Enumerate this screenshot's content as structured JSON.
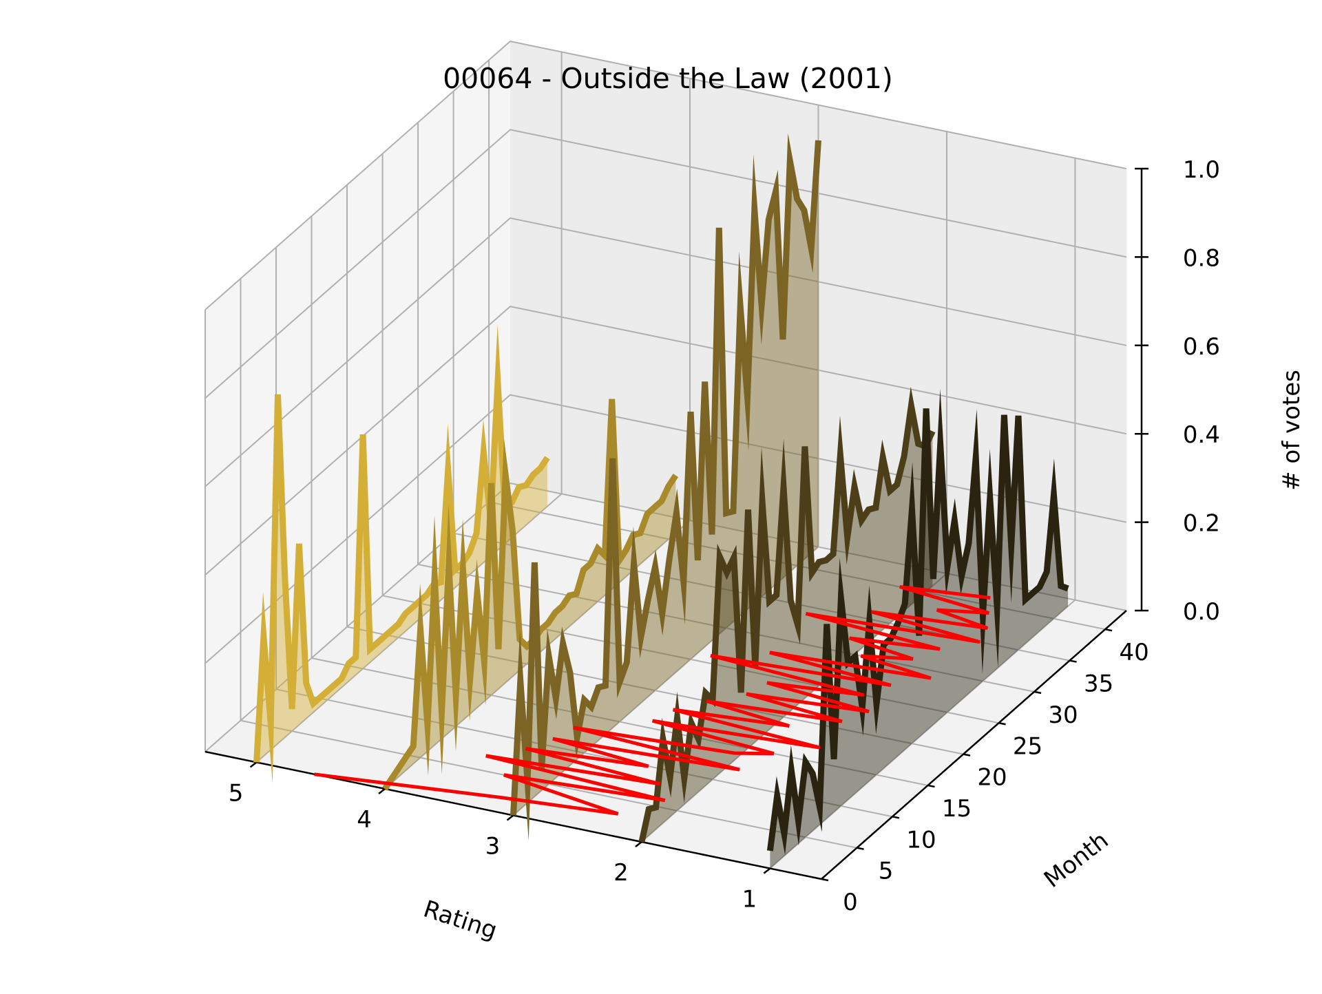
{
  "chart_data": {
    "type": "line",
    "projection": "3d",
    "title": "00064 - Outside the Law (2001)",
    "xlabel": "Rating",
    "ylabel": "Month",
    "zlabel": "# of votes",
    "x_ticks": [
      "1",
      "2",
      "3",
      "4",
      "5"
    ],
    "y_ticks": [
      "0",
      "5",
      "10",
      "15",
      "20",
      "25",
      "30",
      "35",
      "40"
    ],
    "z_ticks": [
      "0.0",
      "0.2",
      "0.4",
      "0.6",
      "0.8",
      "1.0"
    ],
    "xlim": [
      0.6,
      5.4
    ],
    "ylim": [
      0,
      43
    ],
    "zlim": [
      0,
      1
    ],
    "grid": true,
    "series": [
      {
        "rating": 5,
        "color": "#d4af37",
        "values": [
          0,
          0.27,
          0.06,
          0.79,
          0.36,
          0.05,
          0.41,
          0.08,
          0.02,
          0.02,
          0.02,
          0.02,
          0.02,
          0.04,
          0.04,
          0.53,
          0.03,
          0.03,
          0.03,
          0.03,
          0.03,
          0.04,
          0.04,
          0.04,
          0.04,
          0.05,
          0.04,
          0.28,
          0.04,
          0.04,
          0.05,
          0.08,
          0.25,
          0.08,
          0.38,
          0.08,
          0.08,
          0.1,
          0.09,
          0.1,
          0.1,
          0.11
        ]
      },
      {
        "rating": 4,
        "color": "#a88a2b",
        "values": [
          0.0,
          0.01,
          0.02,
          0.03,
          0.04,
          0.29,
          0.06,
          0.38,
          0.06,
          0.38,
          0.07,
          0.34,
          0.08,
          0.26,
          0.09,
          0.48,
          0.09,
          0.47,
          0.33,
          0.07,
          0.04,
          0.04,
          0.05,
          0.05,
          0.06,
          0.06,
          0.07,
          0.06,
          0.1,
          0.1,
          0.12,
          0.09,
          0.43,
          0.05,
          0.06,
          0.08,
          0.07,
          0.1,
          0.1,
          0.1,
          0.12,
          0.13
        ]
      },
      {
        "rating": 3,
        "color": "#7b6424",
        "values": [
          0,
          0.29,
          0.05,
          0.53,
          0.05,
          0.29,
          0.18,
          0.29,
          0.21,
          0.05,
          0.12,
          0.09,
          0.12,
          0.11,
          0.61,
          0.09,
          0.12,
          0.33,
          0.15,
          0.22,
          0.28,
          0.16,
          0.27,
          0.36,
          0.19,
          0.56,
          0.21,
          0.6,
          0.24,
          0.92,
          0.26,
          0.25,
          0.7,
          0.48,
          0.89,
          0.66,
          0.84,
          0.89,
          0.54,
          0.93,
          0.83,
          0.79,
          0.69,
          0.92
        ]
      },
      {
        "rating": 2,
        "color": "#4b3e19",
        "values": [
          0,
          0.06,
          0.05,
          0.19,
          0.09,
          0.21,
          0.06,
          0.17,
          0.12,
          0.21,
          0.18,
          0.49,
          0.44,
          0.46,
          0.14,
          0.54,
          0.17,
          0.53,
          0.29,
          0.29,
          0.52,
          0.25,
          0.18,
          0.57,
          0.27,
          0.28,
          0.27,
          0.27,
          0.48,
          0.28,
          0.38,
          0.29,
          0.3,
          0.29,
          0.39,
          0.3,
          0.3,
          0.35,
          0.45,
          0.35,
          0.33,
          0.35
        ]
      },
      {
        "rating": 1,
        "color": "#2a230f",
        "values": [
          0.04,
          0.15,
          0.05,
          0.18,
          0.05,
          0.17,
          0.13,
          0.04,
          0.44,
          0.12,
          0.47,
          0.31,
          0.31,
          0.18,
          0.36,
          0.16,
          0.28,
          0.28,
          0.3,
          0.33,
          0.53,
          0.23,
          0.73,
          0.33,
          0.62,
          0.33,
          0.42,
          0.28,
          0.34,
          0.52,
          0.15,
          0.4,
          0.14,
          0.56,
          0.25,
          0.53,
          0.1,
          0.1,
          0.1,
          0.12,
          0.28,
          0.06,
          0.04
        ]
      }
    ],
    "trend_line": {
      "color": "#ff0000",
      "label": "",
      "points": [
        [
          4.55,
          0
        ],
        [
          3.2,
          2
        ],
        [
          2.35,
          3
        ],
        [
          3.35,
          5
        ],
        [
          2.15,
          6
        ],
        [
          3.6,
          7
        ],
        [
          2.3,
          8
        ],
        [
          3.4,
          9
        ],
        [
          2.5,
          10
        ],
        [
          3.3,
          11
        ],
        [
          1.9,
          12
        ],
        [
          3.25,
          13
        ],
        [
          2.05,
          14
        ],
        [
          1.8,
          15
        ],
        [
          2.8,
          16
        ],
        [
          1.55,
          17
        ],
        [
          2.75,
          18
        ],
        [
          1.9,
          19
        ],
        [
          2.6,
          20
        ],
        [
          1.6,
          21
        ],
        [
          2.4,
          22
        ],
        [
          1.5,
          23
        ],
        [
          2.35,
          24
        ],
        [
          1.65,
          25
        ],
        [
          2.9,
          26
        ],
        [
          1.55,
          27
        ],
        [
          2.55,
          28
        ],
        [
          1.35,
          29
        ],
        [
          1.95,
          30
        ],
        [
          1.6,
          31
        ],
        [
          2.15,
          32
        ],
        [
          1.5,
          33
        ],
        [
          2.6,
          34
        ],
        [
          1.3,
          35
        ],
        [
          2.2,
          36
        ],
        [
          1.35,
          37
        ],
        [
          1.8,
          38
        ],
        [
          1.45,
          39
        ],
        [
          2.2,
          40
        ],
        [
          1.55,
          41
        ]
      ]
    }
  }
}
